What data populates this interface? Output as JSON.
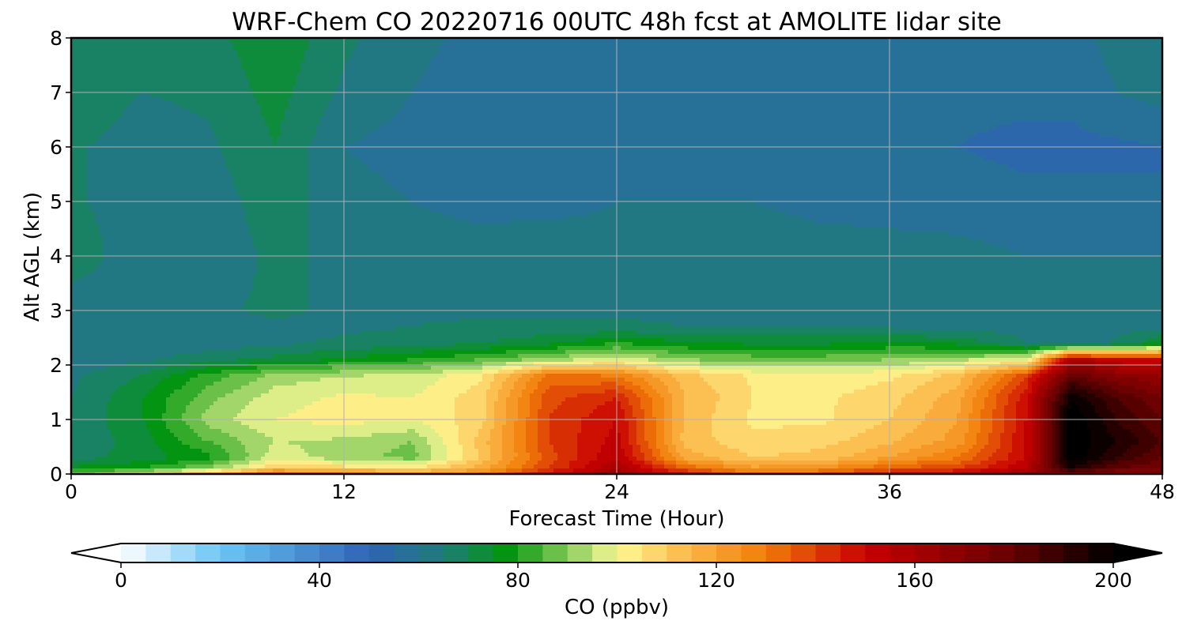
{
  "chart_data": {
    "type": "heatmap",
    "title": "WRF-Chem CO  20220716 00UTC 48h fcst at AMOLITE lidar site",
    "xlabel": "Forecast Time (Hour)",
    "ylabel": "Alt AGL (km)",
    "xlim": [
      0,
      48
    ],
    "ylim": [
      0,
      8
    ],
    "x_ticks": [
      "0",
      "12",
      "24",
      "36",
      "48"
    ],
    "y_ticks": [
      "0",
      "1",
      "2",
      "3",
      "4",
      "5",
      "6",
      "7",
      "8"
    ],
    "grid": true,
    "colorbar": {
      "label": "CO  (ppbv)",
      "range": [
        0,
        200
      ],
      "extend": "both",
      "ticks": [
        "0",
        "40",
        "80",
        "120",
        "160",
        "200"
      ],
      "stops": [
        {
          "v": 0,
          "color": "#ffffff"
        },
        {
          "v": 20,
          "color": "#6ac5f5"
        },
        {
          "v": 50,
          "color": "#2f63b5"
        },
        {
          "v": 65,
          "color": "#1e7c78"
        },
        {
          "v": 78,
          "color": "#02960e"
        },
        {
          "v": 96,
          "color": "#c8e680"
        },
        {
          "v": 100,
          "color": "#fffa96"
        },
        {
          "v": 114,
          "color": "#fbb84a"
        },
        {
          "v": 130,
          "color": "#f17c08"
        },
        {
          "v": 150,
          "color": "#c80000"
        },
        {
          "v": 180,
          "color": "#650000"
        },
        {
          "v": 200,
          "color": "#000000"
        }
      ]
    },
    "x": [
      0,
      3,
      6,
      9,
      12,
      15,
      18,
      21,
      24,
      27,
      30,
      33,
      36,
      39,
      42,
      44,
      46,
      48
    ],
    "y": [
      0,
      0.1,
      0.3,
      0.6,
      1,
      1.4,
      1.8,
      2.1,
      2.4,
      2.7,
      3,
      4,
      5,
      6,
      7,
      8
    ],
    "z": [
      [
        92,
        100,
        120,
        140,
        135,
        125,
        130,
        150,
        165,
        150,
        135,
        140,
        150,
        155,
        165,
        170,
        165,
        170
      ],
      [
        76,
        80,
        90,
        110,
        108,
        105,
        118,
        140,
        160,
        135,
        122,
        125,
        135,
        140,
        155,
        195,
        180,
        175
      ],
      [
        68,
        72,
        78,
        98,
        92,
        88,
        110,
        138,
        155,
        118,
        110,
        112,
        120,
        130,
        150,
        205,
        190,
        180
      ],
      [
        66,
        72,
        85,
        95,
        94,
        90,
        112,
        140,
        152,
        113,
        106,
        108,
        114,
        122,
        150,
        205,
        195,
        185
      ],
      [
        66,
        74,
        92,
        100,
        102,
        100,
        108,
        140,
        150,
        114,
        104,
        104,
        110,
        120,
        150,
        205,
        190,
        180
      ],
      [
        65,
        74,
        88,
        98,
        101,
        100,
        108,
        138,
        145,
        115,
        105,
        104,
        108,
        118,
        148,
        200,
        185,
        175
      ],
      [
        64,
        70,
        82,
        92,
        95,
        96,
        104,
        132,
        130,
        112,
        104,
        102,
        104,
        112,
        140,
        180,
        170,
        165
      ],
      [
        62,
        64,
        68,
        72,
        76,
        80,
        85,
        92,
        98,
        90,
        88,
        88,
        90,
        94,
        98,
        160,
        150,
        150
      ],
      [
        60,
        60,
        62,
        64,
        66,
        68,
        70,
        74,
        80,
        76,
        74,
        74,
        76,
        74,
        65,
        62,
        66,
        75
      ],
      [
        60,
        61,
        62,
        64,
        64,
        65,
        66,
        66,
        66,
        65,
        65,
        65,
        64,
        63,
        63,
        62,
        63,
        64
      ],
      [
        62,
        62,
        64,
        66,
        64,
        64,
        64,
        64,
        64,
        64,
        64,
        64,
        62,
        62,
        62,
        62,
        62,
        62
      ],
      [
        68,
        62,
        62,
        66,
        64,
        63,
        63,
        64,
        62,
        64,
        64,
        63,
        62,
        62,
        60,
        60,
        60,
        60
      ],
      [
        66,
        62,
        62,
        68,
        62,
        60,
        58,
        58,
        60,
        60,
        60,
        58,
        58,
        57,
        56,
        56,
        56,
        55
      ],
      [
        66,
        62,
        64,
        70,
        60,
        58,
        56,
        56,
        56,
        56,
        56,
        56,
        56,
        55,
        54,
        54,
        54,
        55
      ],
      [
        70,
        65,
        66,
        72,
        64,
        60,
        56,
        56,
        56,
        56,
        56,
        57,
        56,
        56,
        56,
        56,
        60,
        62
      ],
      [
        68,
        66,
        68,
        74,
        66,
        62,
        58,
        57,
        57,
        57,
        57,
        57,
        56,
        56,
        58,
        58,
        62,
        64
      ]
    ]
  }
}
